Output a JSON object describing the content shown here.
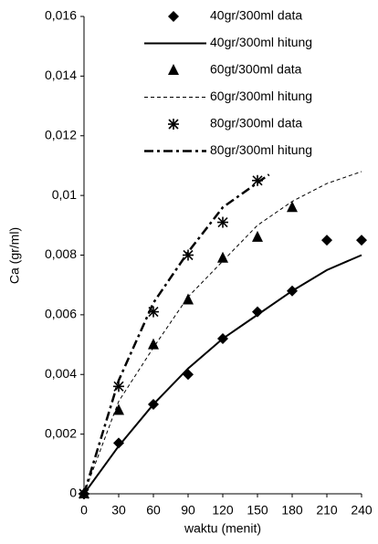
{
  "chart_data": {
    "type": "line",
    "x_label": "waktu (menit)",
    "y_label": "Ca (gr/ml)",
    "xlim": [
      0,
      240
    ],
    "xticks": [
      0,
      30,
      60,
      90,
      120,
      150,
      180,
      210,
      240
    ],
    "ylim": [
      0,
      0.016
    ],
    "yticks": [
      0,
      {
        "value": 0.002,
        "label": "0,002"
      },
      {
        "value": 0.004,
        "label": "0,004"
      },
      {
        "value": 0.006,
        "label": "0,006"
      },
      {
        "value": 0.008,
        "label": "0,008"
      },
      {
        "value": 0.01,
        "label": "0,01"
      },
      {
        "value": 0.012,
        "label": "0,012"
      },
      {
        "value": 0.014,
        "label": "0,014"
      },
      {
        "value": 0.016,
        "label": "0,016"
      }
    ],
    "legend": "top-right",
    "series": [
      {
        "name": "40gr/300ml data",
        "color": "#000000",
        "marker": "diamond",
        "x": [
          0,
          30,
          60,
          90,
          120,
          150,
          180,
          210,
          240
        ],
        "values": [
          0,
          0.0017,
          0.003,
          0.004,
          0.0052,
          0.0061,
          0.0068,
          0.0085,
          0.0085
        ]
      },
      {
        "name": "40gr/300ml hitung",
        "color": "#000000",
        "dash": "solid",
        "x": [
          0,
          30,
          60,
          90,
          120,
          150,
          180,
          210,
          240
        ],
        "values": [
          0,
          0.0016,
          0.003,
          0.0042,
          0.0052,
          0.006,
          0.0068,
          0.0075,
          0.008
        ]
      },
      {
        "name": "60gt/300ml data",
        "color": "#000000",
        "marker": "triangle",
        "x": [
          0,
          30,
          60,
          90,
          120,
          150,
          180
        ],
        "values": [
          0,
          0.0028,
          0.005,
          0.0065,
          0.0079,
          0.0086,
          0.0096
        ]
      },
      {
        "name": "60gr/300ml hitung",
        "color": "#000000",
        "dash": "dashed",
        "x": [
          0,
          30,
          60,
          90,
          120,
          150,
          180,
          210,
          240
        ],
        "values": [
          0,
          0.0031,
          0.0049,
          0.0066,
          0.0078,
          0.009,
          0.0098,
          0.0104,
          0.0108
        ]
      },
      {
        "name": "80gr/300ml data",
        "color": "#000000",
        "marker": "asterisk",
        "x": [
          0,
          30,
          60,
          90,
          120,
          150
        ],
        "values": [
          0,
          0.0036,
          0.0061,
          0.008,
          0.0091,
          0.0105
        ]
      },
      {
        "name": "80gr/300ml hitung",
        "color": "#000000",
        "dash": "dashdot",
        "x": [
          0,
          30,
          60,
          90,
          120,
          160
        ],
        "values": [
          0,
          0.0038,
          0.0064,
          0.0081,
          0.0096,
          0.0107
        ]
      }
    ]
  }
}
